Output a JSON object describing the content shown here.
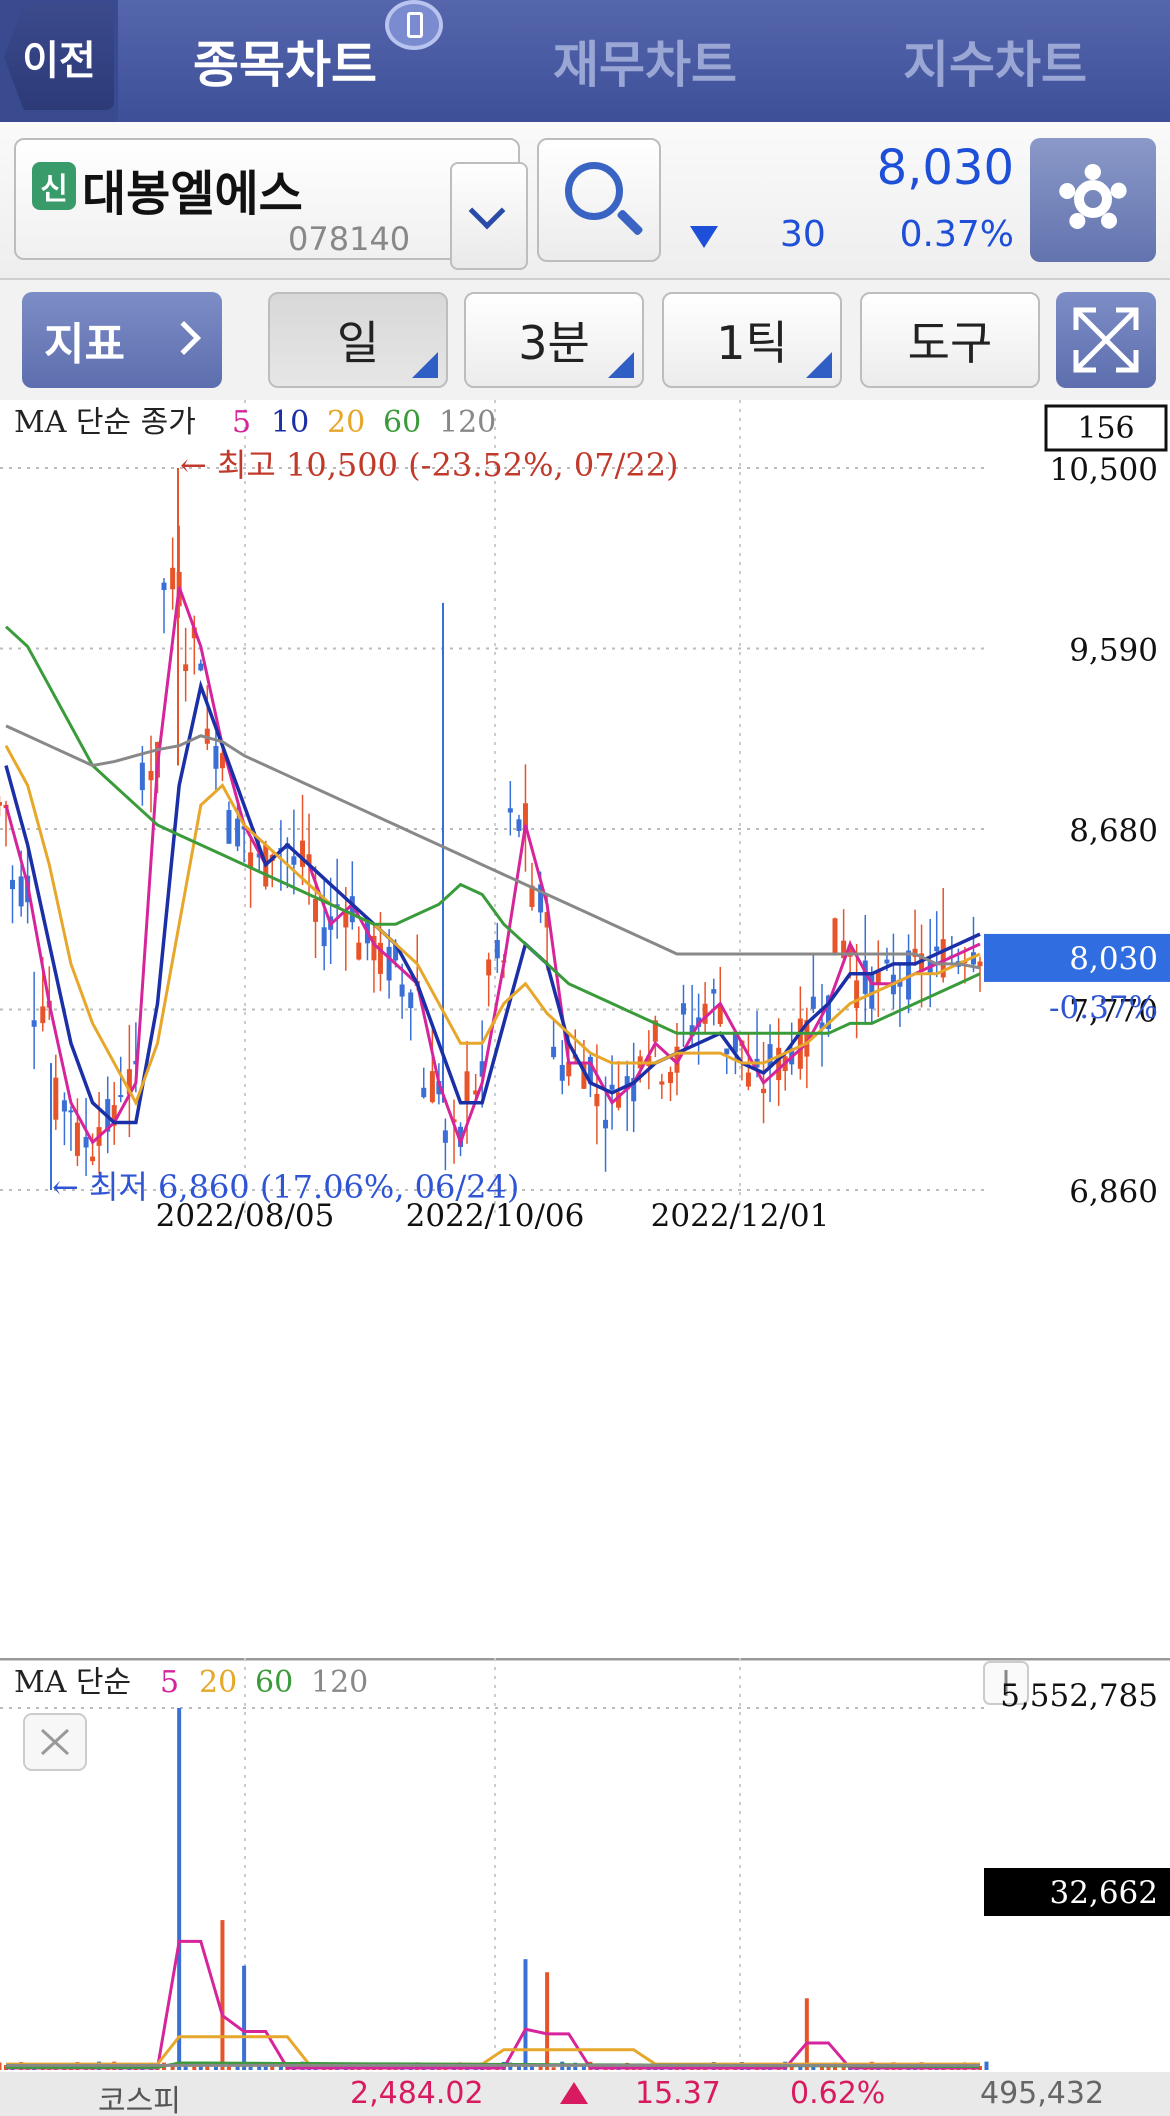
{
  "nav": {
    "back_label": "이전",
    "tabs": [
      {
        "label": "종목차트",
        "active": true
      },
      {
        "label": "재무차트",
        "active": false
      },
      {
        "label": "지수차트",
        "active": false
      }
    ]
  },
  "stock": {
    "badge": "신",
    "name": "대봉엘에스",
    "code": "078140",
    "price": "8,030",
    "change_direction": "down",
    "change": "30",
    "change_pct": "0.37%"
  },
  "toolbar": {
    "indicator_label": "지표",
    "period_day": "일",
    "period_minute": "3분",
    "period_tick": "1틱",
    "tools_label": "도구"
  },
  "price_chart": {
    "legend_prefix": "MA 단순 종가",
    "ma_periods": [
      {
        "label": "5",
        "color": "#d6249b"
      },
      {
        "label": "10",
        "color": "#1b2fa6"
      },
      {
        "label": "20",
        "color": "#e6a72a"
      },
      {
        "label": "60",
        "color": "#3a9b3a"
      },
      {
        "label": "120",
        "color": "#888888"
      }
    ],
    "visible_count": "156",
    "y_ticks": [
      "10,500",
      "9,590",
      "8,680",
      "7,770",
      "6,860"
    ],
    "x_ticks": [
      "2022/08/05",
      "2022/10/06",
      "2022/12/01"
    ],
    "high_annotation": "← 최고 10,500 (-23.52%, 07/22)",
    "low_annotation": "← 최저 6,860 (17.06%, 06/24)",
    "current_price_label": "8,030",
    "current_change_label": "-0.37%",
    "up_color": "#e8542a",
    "down_color": "#3a6fd6"
  },
  "volume_chart": {
    "legend_prefix": "MA 단순",
    "ma_periods": [
      {
        "label": "5",
        "color": "#d6249b"
      },
      {
        "label": "20",
        "color": "#e6a72a"
      },
      {
        "label": "60",
        "color": "#3a9b3a"
      },
      {
        "label": "120",
        "color": "#888888"
      }
    ],
    "y_top": "5,552,785",
    "current_volume": "32,662"
  },
  "ticker": {
    "index_name": "코스피",
    "value": "2,484.02",
    "change": "15.37",
    "change_pct": "0.62%",
    "volume": "495,432"
  },
  "chart_data": {
    "type": "candlestick",
    "title": "",
    "xlabel": "",
    "ylabel": "",
    "ylim": [
      6860,
      10500
    ],
    "x_ticks": [
      "2022/08/05",
      "2022/10/06",
      "2022/12/01"
    ],
    "high": {
      "value": 10500,
      "date": "07/22",
      "pct": "-23.52%"
    },
    "low": {
      "value": 6860,
      "date": "06/24",
      "pct": "17.06%"
    },
    "last_close": 8030,
    "series": [
      {
        "name": "5",
        "values": [
          8800,
          8400,
          7800,
          7300,
          7100,
          7200,
          7400,
          9000,
          9900,
          9600,
          9100,
          8700,
          8500,
          8600,
          8500,
          8200,
          8300,
          8100,
          8000,
          7900,
          7400,
          7100,
          7400,
          8000,
          8700,
          8300,
          7500,
          7500,
          7300,
          7400,
          7600,
          7500,
          7700,
          7800,
          7600,
          7400,
          7500,
          7600,
          7800,
          8100,
          7900,
          7900,
          7950,
          8000,
          8050,
          8100
        ]
      },
      {
        "name": "10",
        "values": [
          9000,
          8600,
          8100,
          7600,
          7300,
          7200,
          7200,
          7800,
          8900,
          9400,
          9100,
          8800,
          8500,
          8600,
          8500,
          8400,
          8300,
          8200,
          8100,
          7900,
          7600,
          7300,
          7300,
          7700,
          8100,
          8000,
          7600,
          7400,
          7350,
          7400,
          7500,
          7550,
          7600,
          7650,
          7500,
          7450,
          7550,
          7700,
          7800,
          7950,
          7950,
          8000,
          8000,
          8050,
          8100,
          8150
        ]
      },
      {
        "name": "20",
        "values": [
          9100,
          8900,
          8500,
          8000,
          7700,
          7500,
          7300,
          7600,
          8200,
          8800,
          8900,
          8700,
          8600,
          8500,
          8400,
          8300,
          8250,
          8200,
          8100,
          8000,
          7800,
          7600,
          7600,
          7800,
          7900,
          7750,
          7650,
          7550,
          7500,
          7500,
          7500,
          7550,
          7550,
          7550,
          7500,
          7500,
          7550,
          7600,
          7700,
          7800,
          7850,
          7900,
          7950,
          7950,
          8000,
          8050
        ]
      },
      {
        "name": "60",
        "values": [
          9700,
          9600,
          9400,
          9200,
          9000,
          8900,
          8800,
          8700,
          8650,
          8600,
          8550,
          8500,
          8450,
          8400,
          8350,
          8300,
          8250,
          8200,
          8200,
          8250,
          8300,
          8400,
          8350,
          8200,
          8100,
          8000,
          7900,
          7850,
          7800,
          7750,
          7700,
          7650,
          7650,
          7650,
          7650,
          7650,
          7650,
          7650,
          7650,
          7700,
          7700,
          7750,
          7800,
          7850,
          7900,
          7950
        ]
      },
      {
        "name": "120",
        "values": [
          9200,
          9150,
          9100,
          9050,
          9000,
          9020,
          9050,
          9080,
          9100,
          9150,
          9120,
          9050,
          9000,
          8950,
          8900,
          8850,
          8800,
          8750,
          8700,
          8650,
          8600,
          8550,
          8500,
          8450,
          8400,
          8350,
          8300,
          8250,
          8200,
          8150,
          8100,
          8050,
          8050,
          8050,
          8050,
          8050,
          8050,
          8050,
          8050,
          8050,
          8050,
          8050,
          8050,
          8000,
          8000,
          7980
        ]
      }
    ],
    "volume_ylim": [
      0,
      5552785
    ],
    "volume_last": 32662
  }
}
